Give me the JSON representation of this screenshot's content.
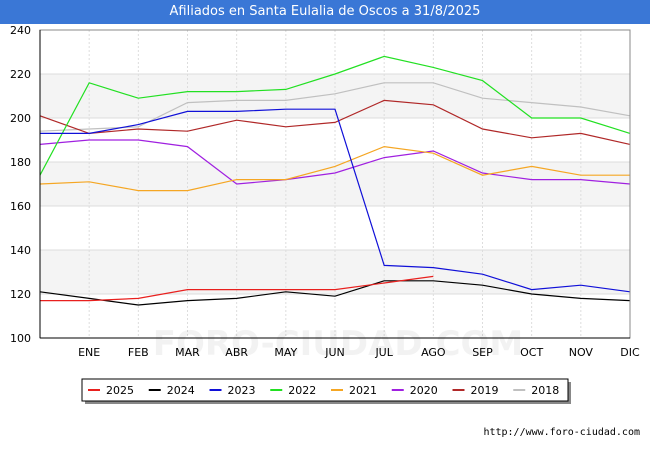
{
  "header": {
    "title": "Afiliados en Santa Eulalia de Oscos a 31/8/2025"
  },
  "footer": {
    "source": "http://www.foro-ciudad.com"
  },
  "watermark": "FORO-CIUDAD.COM",
  "chart_data": {
    "type": "line",
    "title": "Afiliados en Santa Eulalia de Oscos a 31/8/2025",
    "categories": [
      "",
      "ENE",
      "FEB",
      "MAR",
      "ABR",
      "MAY",
      "JUN",
      "JUL",
      "AGO",
      "SEP",
      "OCT",
      "NOV",
      "DIC"
    ],
    "ylim": [
      100,
      240
    ],
    "yticks": [
      100,
      120,
      140,
      160,
      180,
      200,
      220,
      240
    ],
    "grid": true,
    "legend_position": "bottom",
    "series": [
      {
        "name": "2025",
        "color": "#e8201e",
        "values": [
          117,
          117,
          118,
          122,
          122,
          122,
          122,
          125,
          128,
          null,
          null,
          null,
          null
        ]
      },
      {
        "name": "2024",
        "color": "#000000",
        "values": [
          121,
          118,
          115,
          117,
          118,
          121,
          119,
          126,
          126,
          124,
          120,
          118,
          117
        ]
      },
      {
        "name": "2023",
        "color": "#1010d8",
        "values": [
          193,
          193,
          197,
          203,
          203,
          204,
          204,
          133,
          132,
          129,
          122,
          124,
          121
        ]
      },
      {
        "name": "2022",
        "color": "#22e022",
        "values": [
          174,
          216,
          209,
          212,
          212,
          213,
          220,
          228,
          223,
          217,
          200,
          200,
          193
        ]
      },
      {
        "name": "2021",
        "color": "#f5a623",
        "values": [
          170,
          171,
          167,
          167,
          172,
          172,
          178,
          187,
          184,
          174,
          178,
          174,
          174
        ]
      },
      {
        "name": "2020",
        "color": "#a020e0",
        "values": [
          188,
          190,
          190,
          187,
          170,
          172,
          175,
          182,
          185,
          175,
          172,
          172,
          170
        ]
      },
      {
        "name": "2019",
        "color": "#b02828",
        "values": [
          201,
          193,
          195,
          194,
          199,
          196,
          198,
          208,
          206,
          195,
          191,
          193,
          188
        ]
      },
      {
        "name": "2018",
        "color": "#c0c0c0",
        "values": [
          194,
          195,
          196,
          207,
          208,
          208,
          211,
          216,
          216,
          209,
          207,
          205,
          201
        ]
      }
    ]
  }
}
